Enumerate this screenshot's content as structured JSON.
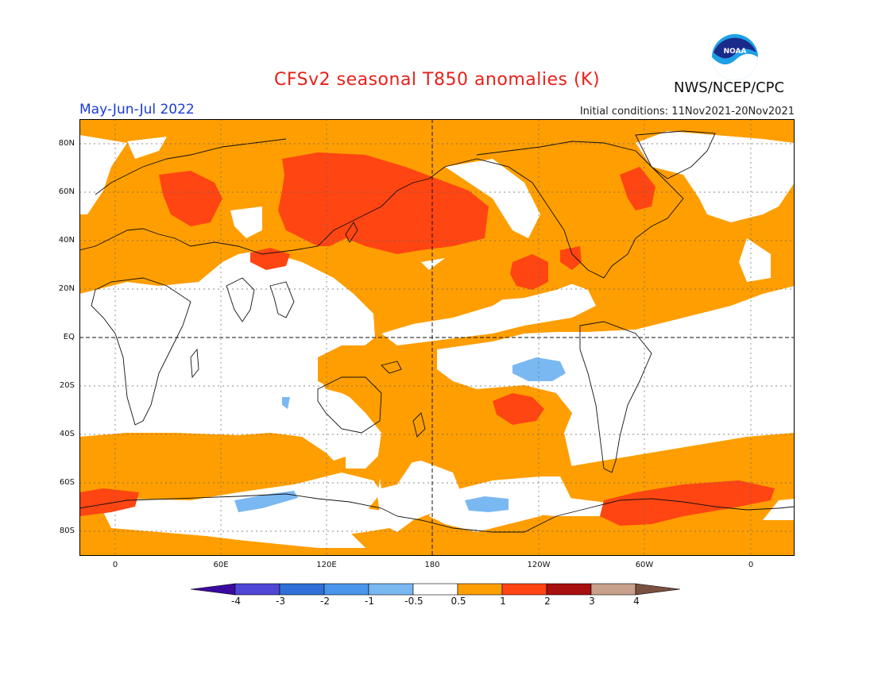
{
  "header": {
    "title": "CFSv2 seasonal T850 anomalies (K)",
    "season": "May-Jun-Jul 2022",
    "initial_conditions": "Initial conditions: 11Nov2021-20Nov2021",
    "agency": "NWS/NCEP/CPC",
    "logo_text": "NOAA"
  },
  "map": {
    "lat_labels": [
      "80N",
      "60N",
      "40N",
      "20N",
      "EQ",
      "20S",
      "40S",
      "60S",
      "80S"
    ],
    "lon_labels": [
      "0",
      "60E",
      "120E",
      "180",
      "120W",
      "60W",
      "0"
    ],
    "variable": "850 hPa temperature anomaly",
    "units": "K"
  },
  "colorbar": {
    "tick_labels": [
      "-4",
      "-3",
      "-2",
      "-1",
      "-0.5",
      "0.5",
      "1",
      "2",
      "3",
      "4"
    ],
    "colors": [
      "#3a0aa0",
      "#4f46d6",
      "#2e6fd8",
      "#4a95ec",
      "#7ab8f2",
      "#ffffff",
      "#ff9e00",
      "#ff4512",
      "#a80f0f",
      "#c8a08c",
      "#7a5040"
    ],
    "anomaly_colors": {
      "warm_0_5_1": "#ff9e00",
      "warm_1_2": "#ff4512",
      "cool_m1_m0_5": "#7ab8f2",
      "cool_m2_m1": "#4a95ec"
    }
  }
}
